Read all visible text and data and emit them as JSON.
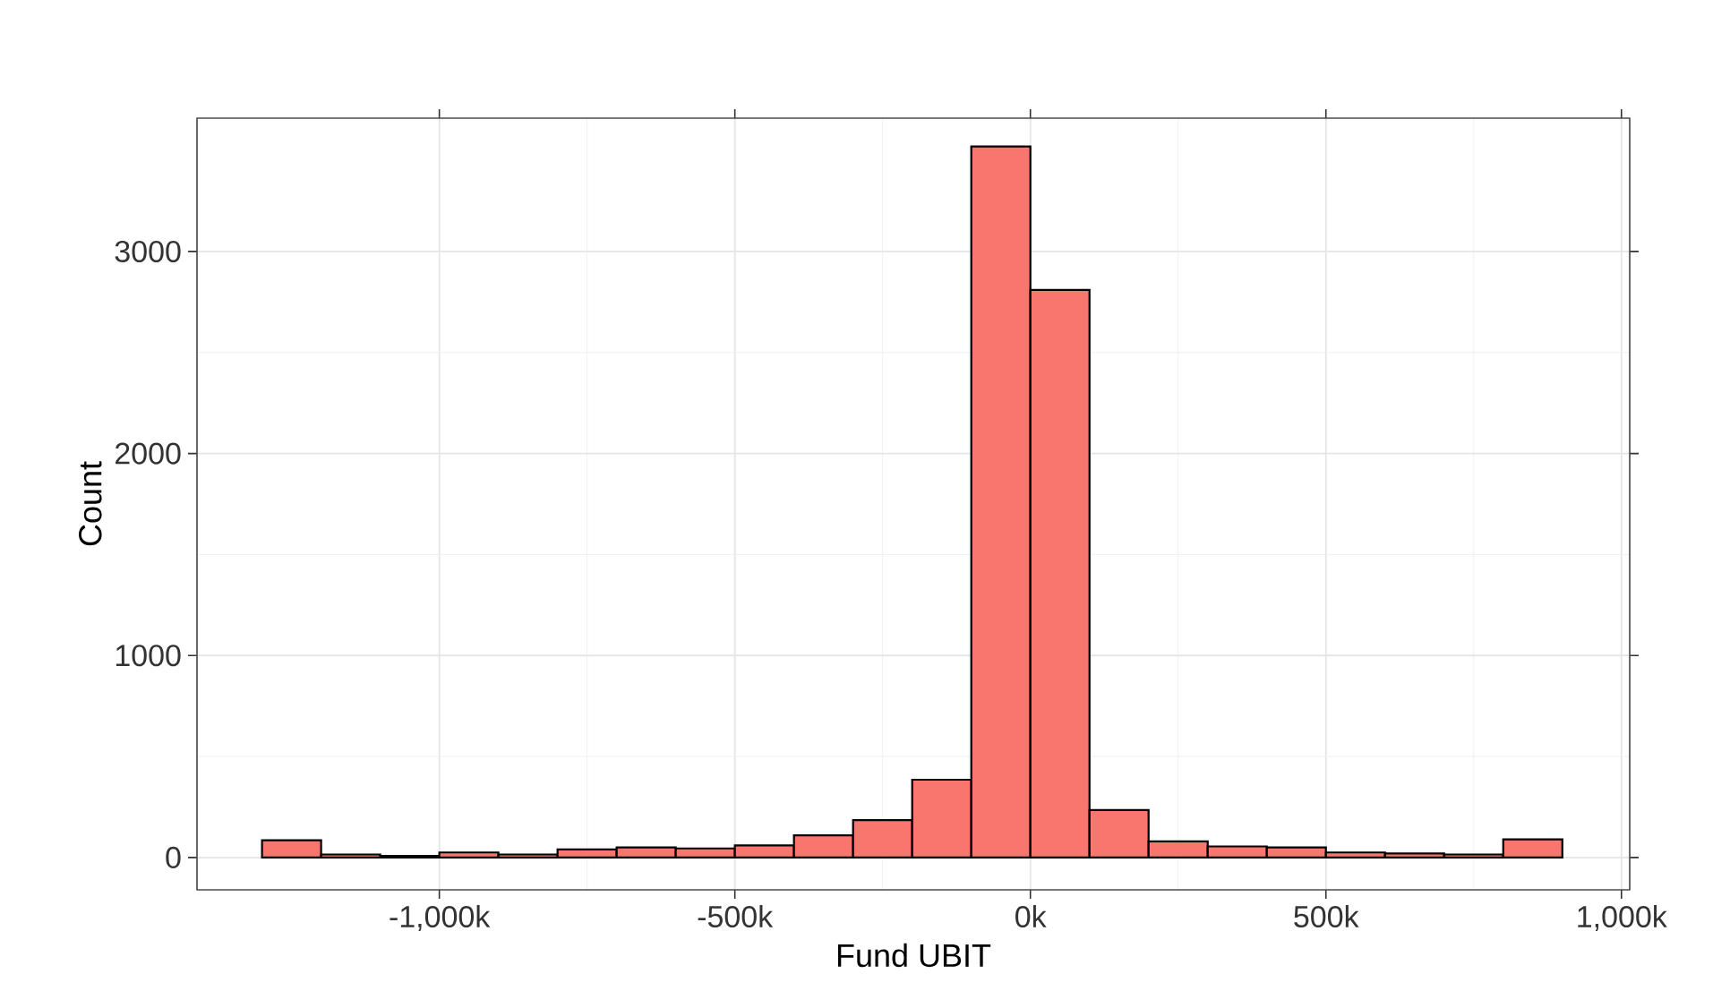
{
  "chart_data": {
    "type": "histogram",
    "xlabel": "Fund UBIT",
    "ylabel": "Count",
    "color": "#f8766d",
    "bins": [
      -1300000,
      -1200000,
      -1100000,
      -1000000,
      -900000,
      -800000,
      -700000,
      -600000,
      -500000,
      -400000,
      -300000,
      -200000,
      -100000,
      0,
      100000,
      200000,
      300000,
      400000,
      500000,
      600000,
      700000,
      800000,
      900000
    ],
    "values": [
      85,
      15,
      8,
      25,
      15,
      40,
      50,
      45,
      60,
      110,
      185,
      385,
      3520,
      2810,
      235,
      80,
      55,
      50,
      25,
      20,
      15,
      90
    ],
    "xlim": [
      -1410000,
      1014000
    ],
    "ylim": [
      -160,
      3660
    ],
    "xticks": [
      {
        "value": -1000000,
        "label": "-1,000k"
      },
      {
        "value": -500000,
        "label": "-500k"
      },
      {
        "value": 0,
        "label": "0k"
      },
      {
        "value": 500000,
        "label": "500k"
      },
      {
        "value": 1000000,
        "label": "1,000k"
      }
    ],
    "yticks": [
      0,
      1000,
      2000,
      3000
    ],
    "grid": true
  }
}
